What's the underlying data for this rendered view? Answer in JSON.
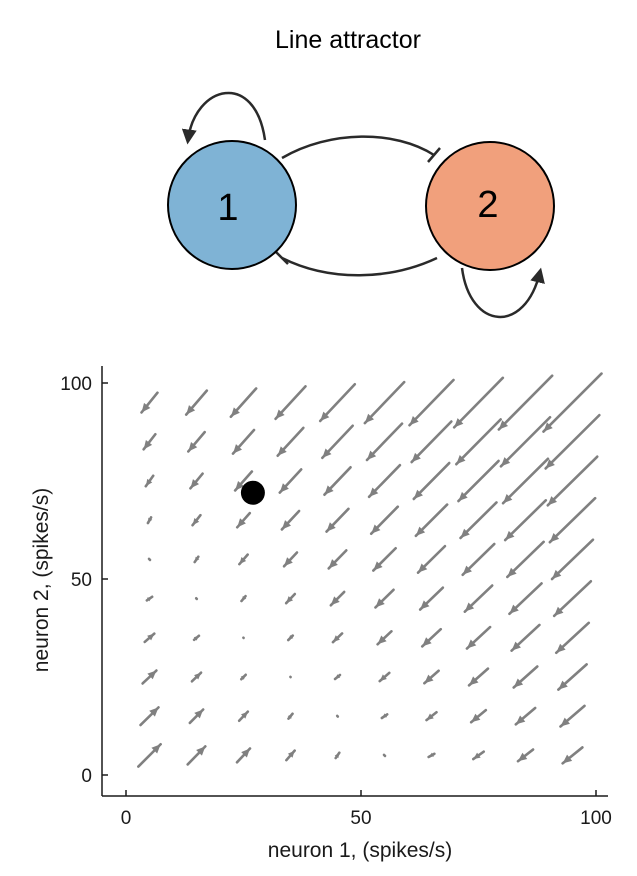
{
  "diagram": {
    "title": "Line attractor",
    "nodes": [
      {
        "label": "1",
        "color": "#7fb3d5"
      },
      {
        "label": "2",
        "color": "#f1a07c"
      }
    ],
    "connections": [
      {
        "from": "1",
        "to": "1",
        "type": "excitatory"
      },
      {
        "from": "2",
        "to": "2",
        "type": "excitatory"
      },
      {
        "from": "1",
        "to": "2",
        "type": "inhibitory"
      },
      {
        "from": "2",
        "to": "1",
        "type": "inhibitory"
      }
    ]
  },
  "chart_data": {
    "type": "quiver",
    "xlabel": "neuron 1, (spikes/s)",
    "ylabel": "neuron 2, (spikes/s)",
    "xlim": [
      -5,
      100
    ],
    "ylim": [
      -5,
      100
    ],
    "xticks": [
      0,
      50,
      100
    ],
    "yticks": [
      0,
      50,
      100
    ],
    "grid": false,
    "arrow_color": "#808080",
    "grid_x": [
      5,
      15,
      25,
      35,
      45,
      55,
      65,
      75,
      85,
      95
    ],
    "grid_y": [
      5,
      15,
      25,
      35,
      45,
      55,
      65,
      75,
      85,
      95
    ],
    "point": {
      "x": 27,
      "y": 72,
      "color": "#000000"
    }
  }
}
